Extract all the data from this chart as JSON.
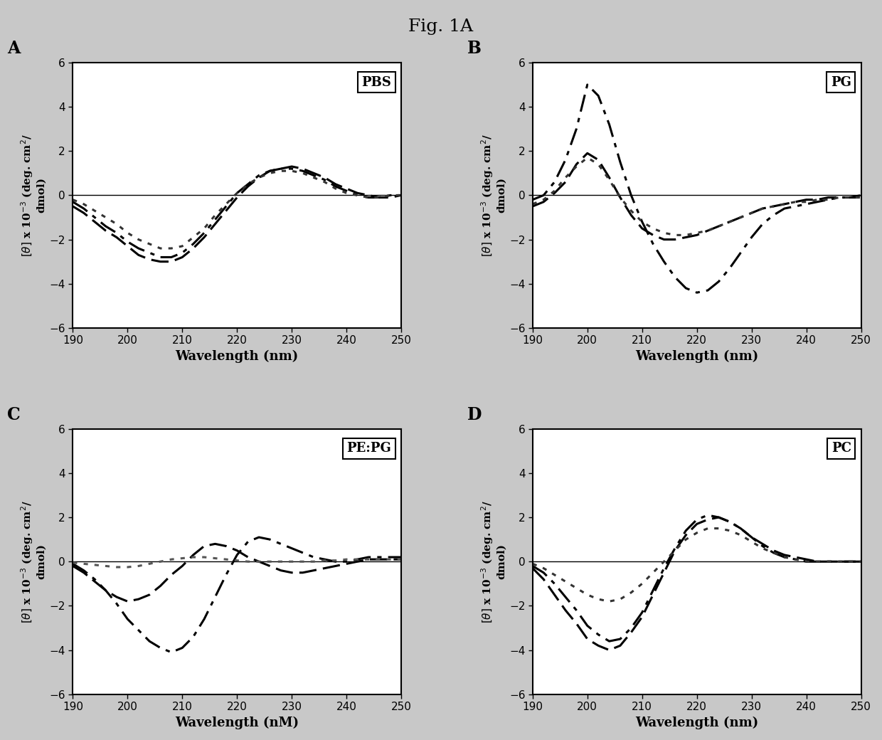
{
  "title": "Fig. 1A",
  "subplots": [
    {
      "label": "A",
      "tag": "PBS",
      "xlabel": "Wavelength (nm)",
      "lines": [
        {
          "style": "--",
          "lw": 2.2,
          "color": "#000000",
          "x": [
            190,
            192,
            194,
            196,
            198,
            200,
            202,
            204,
            206,
            208,
            210,
            212,
            214,
            216,
            218,
            220,
            222,
            224,
            226,
            228,
            230,
            232,
            234,
            236,
            238,
            240,
            242,
            244,
            246,
            248,
            250
          ],
          "y": [
            -0.5,
            -0.8,
            -1.2,
            -1.6,
            -1.9,
            -2.3,
            -2.7,
            -2.9,
            -3.0,
            -3.0,
            -2.8,
            -2.4,
            -1.9,
            -1.3,
            -0.7,
            -0.1,
            0.4,
            0.8,
            1.1,
            1.2,
            1.3,
            1.2,
            1.0,
            0.8,
            0.5,
            0.3,
            0.1,
            0.0,
            -0.1,
            -0.1,
            0.0
          ]
        },
        {
          "style": "-.",
          "lw": 2.2,
          "color": "#000000",
          "x": [
            190,
            192,
            194,
            196,
            198,
            200,
            202,
            204,
            206,
            208,
            210,
            212,
            214,
            216,
            218,
            220,
            222,
            224,
            226,
            228,
            230,
            232,
            234,
            236,
            238,
            240,
            242,
            244,
            246,
            248,
            250
          ],
          "y": [
            -0.3,
            -0.6,
            -1.0,
            -1.4,
            -1.7,
            -2.1,
            -2.4,
            -2.6,
            -2.8,
            -2.8,
            -2.6,
            -2.2,
            -1.7,
            -1.1,
            -0.5,
            0.1,
            0.5,
            0.9,
            1.1,
            1.2,
            1.2,
            1.1,
            0.9,
            0.7,
            0.4,
            0.2,
            0.0,
            -0.1,
            -0.1,
            0.0,
            0.0
          ]
        },
        {
          "style": "dotted",
          "lw": 2.2,
          "color": "#333333",
          "x": [
            190,
            192,
            194,
            196,
            198,
            200,
            202,
            204,
            206,
            208,
            210,
            212,
            214,
            216,
            218,
            220,
            222,
            224,
            226,
            228,
            230,
            232,
            234,
            236,
            238,
            240,
            242,
            244,
            246,
            248,
            250
          ],
          "y": [
            -0.2,
            -0.4,
            -0.7,
            -1.0,
            -1.3,
            -1.7,
            -2.0,
            -2.2,
            -2.4,
            -2.4,
            -2.3,
            -1.9,
            -1.5,
            -0.9,
            -0.4,
            0.1,
            0.5,
            0.8,
            1.0,
            1.1,
            1.1,
            1.0,
            0.8,
            0.6,
            0.3,
            0.1,
            0.0,
            -0.1,
            -0.1,
            0.0,
            0.0
          ]
        }
      ]
    },
    {
      "label": "B",
      "tag": "PG",
      "xlabel": "Wavelength (nm)",
      "lines": [
        {
          "style": "--",
          "lw": 2.2,
          "color": "#000000",
          "x": [
            190,
            192,
            194,
            196,
            198,
            200,
            202,
            204,
            206,
            208,
            210,
            212,
            214,
            216,
            218,
            220,
            222,
            224,
            226,
            228,
            230,
            232,
            234,
            236,
            238,
            240,
            242,
            244,
            246,
            248,
            250
          ],
          "y": [
            -0.5,
            -0.3,
            0.1,
            0.6,
            1.4,
            1.9,
            1.6,
            0.8,
            -0.1,
            -0.9,
            -1.5,
            -1.8,
            -2.0,
            -2.0,
            -1.9,
            -1.8,
            -1.6,
            -1.4,
            -1.2,
            -1.0,
            -0.8,
            -0.6,
            -0.5,
            -0.4,
            -0.3,
            -0.2,
            -0.2,
            -0.1,
            -0.1,
            -0.1,
            0.0
          ]
        },
        {
          "style": "-.",
          "lw": 2.2,
          "color": "#000000",
          "x": [
            190,
            192,
            194,
            196,
            198,
            200,
            202,
            204,
            206,
            208,
            210,
            212,
            214,
            216,
            218,
            220,
            222,
            224,
            226,
            228,
            230,
            232,
            234,
            236,
            238,
            240,
            242,
            244,
            246,
            248,
            250
          ],
          "y": [
            -0.2,
            -0.0,
            0.6,
            1.6,
            3.0,
            5.0,
            4.5,
            3.2,
            1.5,
            0.0,
            -1.2,
            -2.2,
            -3.0,
            -3.7,
            -4.2,
            -4.4,
            -4.3,
            -3.9,
            -3.3,
            -2.6,
            -1.9,
            -1.3,
            -0.9,
            -0.6,
            -0.5,
            -0.4,
            -0.3,
            -0.2,
            -0.1,
            -0.1,
            -0.1
          ]
        },
        {
          "style": "dotted",
          "lw": 2.2,
          "color": "#333333",
          "x": [
            190,
            192,
            194,
            196,
            198,
            200,
            202,
            204,
            206,
            208,
            210,
            212,
            214,
            216,
            218,
            220,
            222,
            224,
            226,
            228,
            230,
            232,
            234,
            236,
            238,
            240,
            242,
            244,
            246,
            248,
            250
          ],
          "y": [
            -0.4,
            -0.2,
            0.2,
            0.8,
            1.3,
            1.7,
            1.4,
            0.7,
            -0.1,
            -0.7,
            -1.2,
            -1.5,
            -1.7,
            -1.8,
            -1.8,
            -1.7,
            -1.6,
            -1.4,
            -1.2,
            -1.0,
            -0.8,
            -0.6,
            -0.5,
            -0.4,
            -0.3,
            -0.3,
            -0.2,
            -0.2,
            -0.1,
            -0.1,
            -0.1
          ]
        }
      ]
    },
    {
      "label": "C",
      "tag": "PE:PG",
      "xlabel": "Wavelength (nM)",
      "lines": [
        {
          "style": "--",
          "lw": 2.2,
          "color": "#000000",
          "x": [
            190,
            192,
            194,
            196,
            198,
            200,
            202,
            204,
            206,
            208,
            210,
            212,
            214,
            216,
            218,
            220,
            222,
            224,
            226,
            228,
            230,
            232,
            234,
            236,
            238,
            240,
            242,
            244,
            246,
            248,
            250
          ],
          "y": [
            -0.2,
            -0.5,
            -0.9,
            -1.3,
            -1.6,
            -1.8,
            -1.7,
            -1.5,
            -1.1,
            -0.6,
            -0.2,
            0.3,
            0.7,
            0.8,
            0.7,
            0.5,
            0.2,
            0.0,
            -0.2,
            -0.4,
            -0.5,
            -0.5,
            -0.4,
            -0.3,
            -0.2,
            -0.1,
            0.0,
            0.1,
            0.1,
            0.1,
            0.1
          ]
        },
        {
          "style": "-.",
          "lw": 2.2,
          "color": "#000000",
          "x": [
            190,
            192,
            194,
            196,
            198,
            200,
            202,
            204,
            206,
            208,
            210,
            212,
            214,
            216,
            218,
            220,
            222,
            224,
            226,
            228,
            230,
            232,
            234,
            236,
            238,
            240,
            242,
            244,
            246,
            248,
            250
          ],
          "y": [
            -0.1,
            -0.4,
            -0.8,
            -1.3,
            -1.9,
            -2.6,
            -3.1,
            -3.6,
            -3.9,
            -4.1,
            -3.9,
            -3.4,
            -2.6,
            -1.6,
            -0.6,
            0.3,
            0.9,
            1.1,
            1.0,
            0.8,
            0.6,
            0.4,
            0.2,
            0.1,
            0.0,
            0.0,
            0.1,
            0.2,
            0.2,
            0.2,
            0.2
          ]
        },
        {
          "style": "dotted",
          "lw": 2.2,
          "color": "#555555",
          "x": [
            190,
            192,
            194,
            196,
            198,
            200,
            202,
            204,
            206,
            208,
            210,
            212,
            214,
            216,
            218,
            220,
            222,
            224,
            226,
            228,
            230,
            232,
            234,
            236,
            238,
            240,
            242,
            244,
            246,
            248,
            250
          ],
          "y": [
            -0.05,
            -0.1,
            -0.15,
            -0.2,
            -0.25,
            -0.25,
            -0.2,
            -0.1,
            0.0,
            0.1,
            0.15,
            0.2,
            0.2,
            0.15,
            0.1,
            0.05,
            0.0,
            0.0,
            0.0,
            0.0,
            0.0,
            0.0,
            0.0,
            0.05,
            0.05,
            0.1,
            0.1,
            0.1,
            0.1,
            0.1,
            0.1
          ]
        }
      ]
    },
    {
      "label": "D",
      "tag": "PC",
      "xlabel": "Wavelength (nm)",
      "lines": [
        {
          "style": "--",
          "lw": 2.2,
          "color": "#000000",
          "x": [
            190,
            192,
            194,
            196,
            198,
            200,
            202,
            204,
            206,
            208,
            210,
            212,
            214,
            216,
            218,
            220,
            222,
            224,
            226,
            228,
            230,
            232,
            234,
            236,
            238,
            240,
            242,
            244,
            246,
            248,
            250
          ],
          "y": [
            -0.3,
            -0.8,
            -1.5,
            -2.2,
            -2.8,
            -3.5,
            -3.8,
            -4.0,
            -3.8,
            -3.2,
            -2.5,
            -1.5,
            -0.5,
            0.5,
            1.2,
            1.7,
            1.9,
            2.0,
            1.8,
            1.5,
            1.1,
            0.8,
            0.5,
            0.3,
            0.2,
            0.1,
            0.0,
            0.0,
            0.0,
            0.0,
            0.0
          ]
        },
        {
          "style": "-.",
          "lw": 2.2,
          "color": "#000000",
          "x": [
            190,
            192,
            194,
            196,
            198,
            200,
            202,
            204,
            206,
            208,
            210,
            212,
            214,
            216,
            218,
            220,
            222,
            224,
            226,
            228,
            230,
            232,
            234,
            236,
            238,
            240,
            242,
            244,
            246,
            248,
            250
          ],
          "y": [
            -0.2,
            -0.5,
            -1.0,
            -1.6,
            -2.2,
            -2.9,
            -3.3,
            -3.6,
            -3.5,
            -3.0,
            -2.3,
            -1.3,
            -0.3,
            0.6,
            1.4,
            1.9,
            2.1,
            2.0,
            1.8,
            1.5,
            1.1,
            0.7,
            0.4,
            0.2,
            0.1,
            0.0,
            0.0,
            0.0,
            0.0,
            0.0,
            0.0
          ]
        },
        {
          "style": "dotted",
          "lw": 2.2,
          "color": "#333333",
          "x": [
            190,
            192,
            194,
            196,
            198,
            200,
            202,
            204,
            206,
            208,
            210,
            212,
            214,
            216,
            218,
            220,
            222,
            224,
            226,
            228,
            230,
            232,
            234,
            236,
            238,
            240,
            242,
            244,
            246,
            248,
            250
          ],
          "y": [
            -0.1,
            -0.3,
            -0.6,
            -0.9,
            -1.2,
            -1.5,
            -1.7,
            -1.8,
            -1.7,
            -1.4,
            -1.0,
            -0.5,
            0.0,
            0.5,
            1.0,
            1.3,
            1.5,
            1.5,
            1.4,
            1.2,
            0.9,
            0.6,
            0.4,
            0.2,
            0.1,
            0.0,
            0.0,
            0.0,
            0.0,
            0.0,
            0.0
          ]
        }
      ]
    }
  ],
  "ylim": [
    -6,
    6
  ],
  "xlim": [
    190,
    250
  ],
  "yticks": [
    -6,
    -4,
    -2,
    0,
    2,
    4,
    6
  ],
  "xticks": [
    190,
    200,
    210,
    220,
    230,
    240,
    250
  ],
  "bg_color": "#c8c8c8",
  "plot_bg_color": "#ffffff"
}
